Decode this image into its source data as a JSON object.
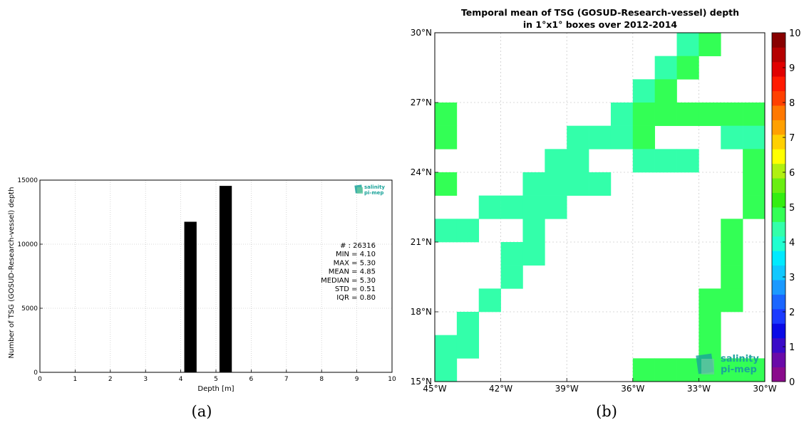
{
  "panels": {
    "a_label": "(a)",
    "b_label": "(b)"
  },
  "logo": {
    "line1": "salinity",
    "line2": "pi-mep",
    "color": "#1aa39a"
  },
  "histogram": {
    "ylabel": "Number of TSG (GOSUD-Research-vessel) depth",
    "xlabel": "Depth [m]",
    "stats": [
      "# : 26316",
      "MIN = 4.10",
      "MAX =  5.30",
      "MEAN = 4.85",
      "MEDIAN = 5.30",
      "STD = 0.51",
      "IQR = 0.80"
    ]
  },
  "map": {
    "title_line1": "Temporal mean of TSG (GOSUD-Research-vessel) depth",
    "title_line2": "in 1°x1° boxes over 2012-2014",
    "colors": {
      "green": "#33ee11",
      "aqua": "#33ffaa"
    }
  },
  "chart_data": [
    {
      "type": "bar",
      "xlabel": "Depth [m]",
      "ylabel": "Number of TSG (GOSUD-Research-vessel) depth",
      "xlim": [
        0,
        10
      ],
      "ylim": [
        0,
        15000
      ],
      "xticks": [
        0,
        1,
        2,
        3,
        4,
        5,
        6,
        7,
        8,
        9,
        10
      ],
      "yticks": [
        0,
        5000,
        10000,
        15000
      ],
      "grid": true,
      "bar_color": "#000000",
      "bars": [
        {
          "x": 4.1,
          "x_end": 4.45,
          "value": 11750
        },
        {
          "x": 5.1,
          "x_end": 5.45,
          "value": 14550
        }
      ]
    },
    {
      "type": "heatmap",
      "title": "Temporal mean of TSG (GOSUD-Research-vessel) depth in 1°x1° boxes over 2012-2014",
      "xlim": [
        -45,
        -30
      ],
      "ylim": [
        15,
        30
      ],
      "xticks": [
        -45,
        -42,
        -39,
        -36,
        -33,
        -30
      ],
      "xticklabels": [
        "45°W",
        "42°W",
        "39°W",
        "36°W",
        "33°W",
        "30°W"
      ],
      "yticks": [
        15,
        18,
        21,
        24,
        27,
        30
      ],
      "yticklabels": [
        "15°N",
        "18°N",
        "21°N",
        "24°N",
        "27°N",
        "30°N"
      ],
      "grid": true,
      "colorbar": {
        "min": 0,
        "max": 10,
        "ticks": [
          0,
          1,
          2,
          3,
          4,
          5,
          6,
          7,
          8,
          9,
          10
        ],
        "colors": [
          "#8a0b8c",
          "#6a0aa8",
          "#3a0ac8",
          "#0a0ae6",
          "#1a3aff",
          "#1a66ff",
          "#1a99ff",
          "#10c8ff",
          "#00eaff",
          "#20ffd0",
          "#33ffaa",
          "#33ff55",
          "#33ee11",
          "#6aee11",
          "#b0f010",
          "#ffff00",
          "#ffd000",
          "#ffa000",
          "#ff7800",
          "#ff4000",
          "#ff1a00",
          "#e00000",
          "#b50000",
          "#880000"
        ]
      },
      "cells": [
        {
          "lon": -34,
          "lat": 29,
          "value": 4.2
        },
        {
          "lon": -33,
          "lat": 29,
          "value": 4.8
        },
        {
          "lon": -35,
          "lat": 28,
          "value": 4.2
        },
        {
          "lon": -34,
          "lat": 28,
          "value": 4.8
        },
        {
          "lon": -36,
          "lat": 27,
          "value": 4.2
        },
        {
          "lon": -35,
          "lat": 27,
          "value": 4.8
        },
        {
          "lon": -45,
          "lat": 26,
          "value": 4.8
        },
        {
          "lon": -37,
          "lat": 26,
          "value": 4.2
        },
        {
          "lon": -36,
          "lat": 26,
          "value": 4.8
        },
        {
          "lon": -35,
          "lat": 26,
          "value": 4.8
        },
        {
          "lon": -34,
          "lat": 26,
          "value": 4.8
        },
        {
          "lon": -33,
          "lat": 26,
          "value": 4.8
        },
        {
          "lon": -32,
          "lat": 26,
          "value": 4.8
        },
        {
          "lon": -31,
          "lat": 26,
          "value": 4.8
        },
        {
          "lon": -45,
          "lat": 25,
          "value": 4.8
        },
        {
          "lon": -39,
          "lat": 25,
          "value": 4.2
        },
        {
          "lon": -38,
          "lat": 25,
          "value": 4.2
        },
        {
          "lon": -37,
          "lat": 25,
          "value": 4.2
        },
        {
          "lon": -36,
          "lat": 25,
          "value": 4.8
        },
        {
          "lon": -32,
          "lat": 25,
          "value": 4.2
        },
        {
          "lon": -31,
          "lat": 25,
          "value": 4.2
        },
        {
          "lon": -40,
          "lat": 24,
          "value": 4.2
        },
        {
          "lon": -39,
          "lat": 24,
          "value": 4.2
        },
        {
          "lon": -36,
          "lat": 24,
          "value": 4.2
        },
        {
          "lon": -35,
          "lat": 24,
          "value": 4.2
        },
        {
          "lon": -34,
          "lat": 24,
          "value": 4.2
        },
        {
          "lon": -31,
          "lat": 24,
          "value": 4.8
        },
        {
          "lon": -45,
          "lat": 23,
          "value": 4.8
        },
        {
          "lon": -41,
          "lat": 23,
          "value": 4.2
        },
        {
          "lon": -40,
          "lat": 23,
          "value": 4.2
        },
        {
          "lon": -39,
          "lat": 23,
          "value": 4.2
        },
        {
          "lon": -38,
          "lat": 23,
          "value": 4.2
        },
        {
          "lon": -31,
          "lat": 23,
          "value": 4.8
        },
        {
          "lon": -43,
          "lat": 22,
          "value": 4.2
        },
        {
          "lon": -42,
          "lat": 22,
          "value": 4.2
        },
        {
          "lon": -41,
          "lat": 22,
          "value": 4.2
        },
        {
          "lon": -40,
          "lat": 22,
          "value": 4.2
        },
        {
          "lon": -31,
          "lat": 22,
          "value": 4.8
        },
        {
          "lon": -45,
          "lat": 21,
          "value": 4.2
        },
        {
          "lon": -44,
          "lat": 21,
          "value": 4.2
        },
        {
          "lon": -41,
          "lat": 21,
          "value": 4.2
        },
        {
          "lon": -32,
          "lat": 21,
          "value": 4.8
        },
        {
          "lon": -42,
          "lat": 20,
          "value": 4.2
        },
        {
          "lon": -41,
          "lat": 20,
          "value": 4.2
        },
        {
          "lon": -32,
          "lat": 20,
          "value": 4.8
        },
        {
          "lon": -42,
          "lat": 19,
          "value": 4.2
        },
        {
          "lon": -32,
          "lat": 19,
          "value": 4.8
        },
        {
          "lon": -43,
          "lat": 18,
          "value": 4.2
        },
        {
          "lon": -33,
          "lat": 18,
          "value": 4.8
        },
        {
          "lon": -32,
          "lat": 18,
          "value": 4.8
        },
        {
          "lon": -44,
          "lat": 17,
          "value": 4.2
        },
        {
          "lon": -33,
          "lat": 17,
          "value": 4.8
        },
        {
          "lon": -45,
          "lat": 16,
          "value": 4.2
        },
        {
          "lon": -44,
          "lat": 16,
          "value": 4.2
        },
        {
          "lon": -33,
          "lat": 16,
          "value": 4.8
        },
        {
          "lon": -45,
          "lat": 15,
          "value": 4.2
        },
        {
          "lon": -36,
          "lat": 15,
          "value": 4.8
        },
        {
          "lon": -35,
          "lat": 15,
          "value": 4.8
        },
        {
          "lon": -34,
          "lat": 15,
          "value": 4.8
        },
        {
          "lon": -33,
          "lat": 15,
          "value": 4.8
        },
        {
          "lon": -32,
          "lat": 15,
          "value": 4.8
        },
        {
          "lon": -31,
          "lat": 15,
          "value": 4.8
        }
      ]
    }
  ]
}
